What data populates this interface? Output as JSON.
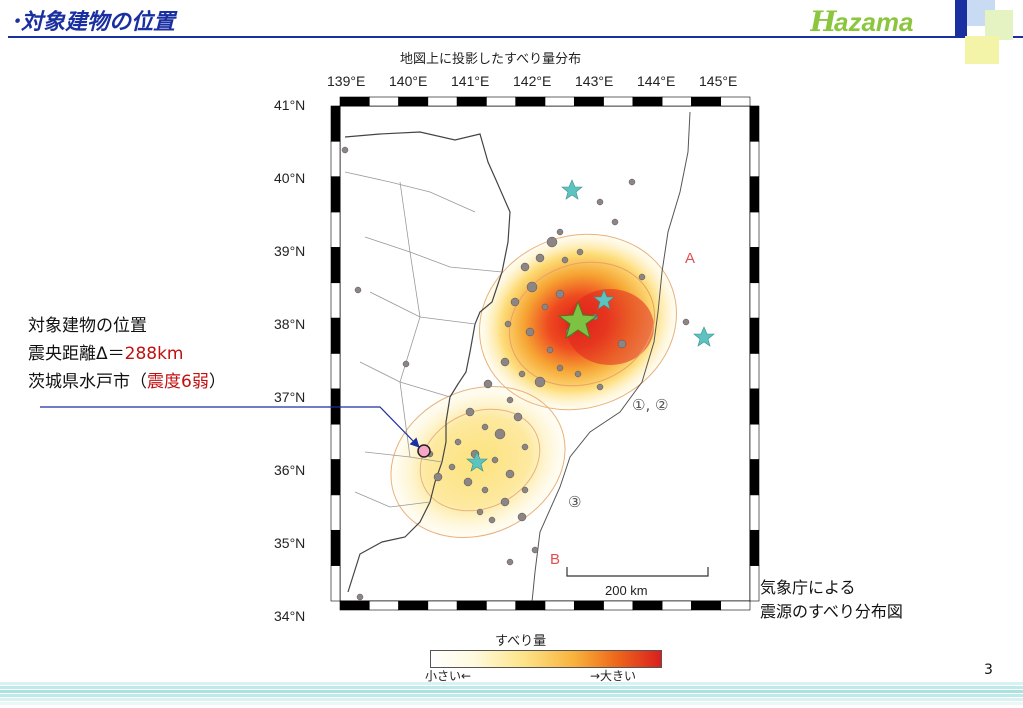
{
  "slide": {
    "title": "･対象建物の位置",
    "logo_text": "Hazama",
    "page_number": "3"
  },
  "colors": {
    "title_blue": "#1a2fa0",
    "accent_red": "#c01010",
    "logo_green": "#8cc63f",
    "epicenter_green": "#7dc242",
    "aftershock_teal": "#5cc3c0",
    "site_marker_pink": "#f7a6c8"
  },
  "map": {
    "title": "地図上に投影したすべり量分布",
    "lon_labels": [
      "139°E",
      "140°E",
      "141°E",
      "142°E",
      "143°E",
      "144°E",
      "145°E"
    ],
    "lat_labels": [
      "41°N",
      "40°N",
      "39°N",
      "38°N",
      "37°N",
      "36°N",
      "35°N",
      "34°N"
    ],
    "label_a": "A",
    "label_b": "B",
    "label_region_12": "①, ②",
    "label_region_3": "③",
    "scale_label": "200 km",
    "legend": {
      "title": "すべり量",
      "small": "小さい←",
      "large": "→大きい"
    }
  },
  "annotation": {
    "line1": "対象建物の位置",
    "line2_prefix": "震央距離Δ＝",
    "line2_value": "288km",
    "line3_prefix": "茨城県水戸市（",
    "line3_value": "震度6弱",
    "line3_suffix": "）"
  },
  "caption": {
    "line1": "気象庁による",
    "line2": "震源のすべり分布図"
  }
}
